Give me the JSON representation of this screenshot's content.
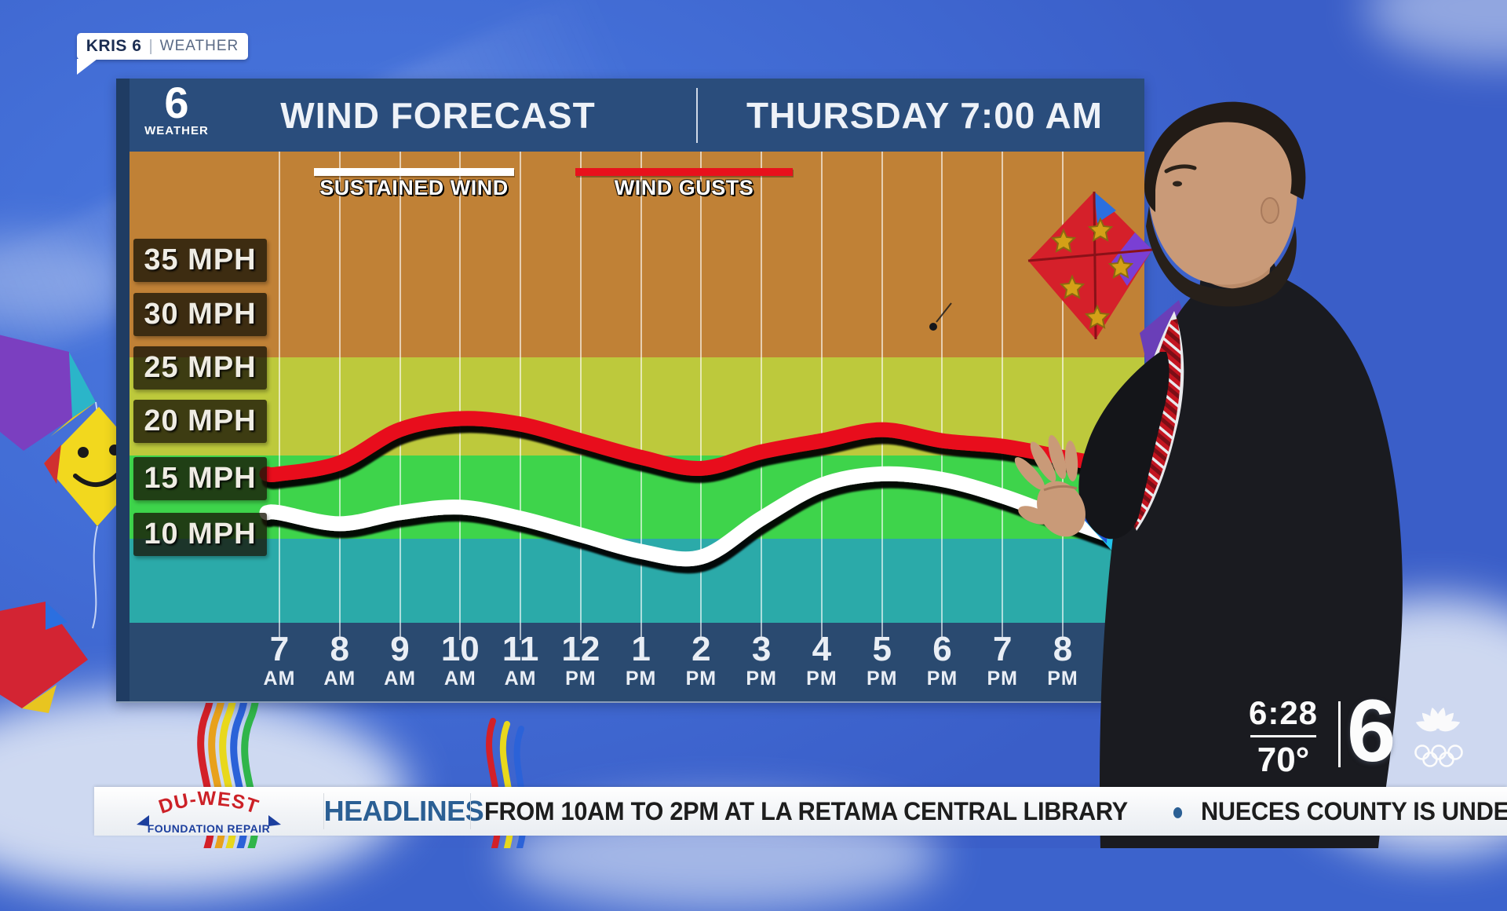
{
  "tab": {
    "station": "KRIS 6",
    "pipe": "|",
    "section": "WEATHER"
  },
  "panel": {
    "logo_number": "6",
    "logo_label": "WEATHER",
    "title": "WIND FORECAST",
    "datetime": "THURSDAY 7:00 AM"
  },
  "legend": {
    "sustained": "SUSTAINED WIND",
    "gusts": "WIND GUSTS"
  },
  "y_axis_labels": [
    "35 MPH",
    "30 MPH",
    "25 MPH",
    "20 MPH",
    "15 MPH",
    "10 MPH"
  ],
  "chart_data": {
    "type": "line",
    "title": "WIND FORECAST",
    "subtitle": "THURSDAY 7:00 AM",
    "categories": [
      "7 AM",
      "8 AM",
      "9 AM",
      "10 AM",
      "11 AM",
      "12 PM",
      "1 PM",
      "2 PM",
      "3 PM",
      "4 PM",
      "5 PM",
      "6 PM",
      "7 PM",
      "8 PM"
    ],
    "series": [
      {
        "name": "SUSTAINED WIND",
        "color": "#ffffff",
        "values": [
          12,
          11,
          12,
          12.5,
          11.5,
          10,
          8.5,
          8,
          11.5,
          14.5,
          15.5,
          15,
          13.5,
          11.5
        ]
      },
      {
        "name": "WIND GUSTS",
        "color": "#e8111c",
        "values": [
          15.5,
          16.5,
          19.5,
          20.5,
          20,
          18.5,
          17,
          16,
          17.5,
          18.5,
          19.5,
          18.5,
          18,
          17
        ]
      }
    ],
    "ylabel": "MPH",
    "y_ticks": [
      10,
      15,
      20,
      25,
      30,
      35
    ],
    "ylim": [
      2,
      45
    ],
    "grid": "vertical-only",
    "legend_position": "top",
    "background_bands_top_to_bottom": [
      {
        "color": "#c08136",
        "mph_range": [
          26,
          45
        ]
      },
      {
        "color": "#bdc93c",
        "mph_range": [
          17,
          26
        ]
      },
      {
        "color": "#3ed44b",
        "mph_range": [
          9.5,
          17
        ]
      },
      {
        "color": "#2baaa9",
        "mph_range": [
          2,
          9.5
        ]
      }
    ]
  },
  "clock": {
    "time": "6:28",
    "temp": "70°"
  },
  "station_logo": {
    "number": "6"
  },
  "ticker": {
    "sponsor_top": "DU-WEST",
    "sponsor_bottom": "FOUNDATION REPAIR",
    "label": "HEADLINES",
    "headline_1": "FROM 10AM TO 2PM AT LA RETAMA CENTRAL LIBRARY",
    "separator": "●",
    "headline_2": "NUECES COUNTY IS UNDE"
  },
  "icons": {
    "nbc_peacock": "peacock-fan-and-olympic-rings",
    "duwest_arrows": "blue-curved-arrows"
  },
  "colors": {
    "panel_navy": "#2a4d7c",
    "footer_navy": "#2a4a70",
    "sustained_line": "#ffffff",
    "gust_line": "#e8111c",
    "ticker_accent": "#2b5f94"
  }
}
